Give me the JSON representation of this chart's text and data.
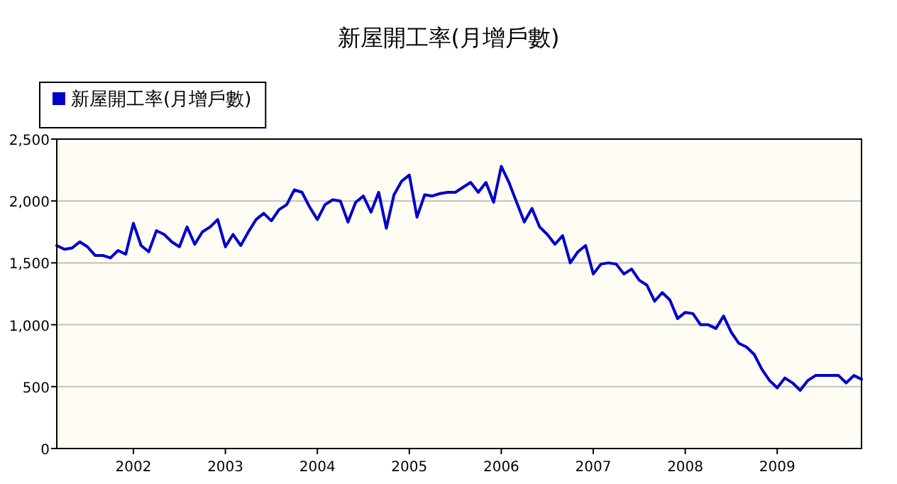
{
  "chart_data": {
    "type": "line",
    "title": "新屋開工率(月增戶數)",
    "x": [
      "2001-03",
      "2001-04",
      "2001-05",
      "2001-06",
      "2001-07",
      "2001-08",
      "2001-09",
      "2001-10",
      "2001-11",
      "2001-12",
      "2002-01",
      "2002-02",
      "2002-03",
      "2002-04",
      "2002-05",
      "2002-06",
      "2002-07",
      "2002-08",
      "2002-09",
      "2002-10",
      "2002-11",
      "2002-12",
      "2003-01",
      "2003-02",
      "2003-03",
      "2003-04",
      "2003-05",
      "2003-06",
      "2003-07",
      "2003-08",
      "2003-09",
      "2003-10",
      "2003-11",
      "2003-12",
      "2004-01",
      "2004-02",
      "2004-03",
      "2004-04",
      "2004-05",
      "2004-06",
      "2004-07",
      "2004-08",
      "2004-09",
      "2004-10",
      "2004-11",
      "2004-12",
      "2005-01",
      "2005-02",
      "2005-03",
      "2005-04",
      "2005-05",
      "2005-06",
      "2005-07",
      "2005-08",
      "2005-09",
      "2005-10",
      "2005-11",
      "2005-12",
      "2006-01",
      "2006-02",
      "2006-03",
      "2006-04",
      "2006-05",
      "2006-06",
      "2006-07",
      "2006-08",
      "2006-09",
      "2006-10",
      "2006-11",
      "2006-12",
      "2007-01",
      "2007-02",
      "2007-03",
      "2007-04",
      "2007-05",
      "2007-06",
      "2007-07",
      "2007-08",
      "2007-09",
      "2007-10",
      "2007-11",
      "2007-12",
      "2008-01",
      "2008-02",
      "2008-03",
      "2008-04",
      "2008-05",
      "2008-06",
      "2008-07",
      "2008-08",
      "2008-09",
      "2008-10",
      "2008-11",
      "2008-12",
      "2009-01",
      "2009-02",
      "2009-03",
      "2009-04",
      "2009-05",
      "2009-06",
      "2009-07",
      "2009-08",
      "2009-09",
      "2009-10",
      "2009-11",
      "2009-12"
    ],
    "series": [
      {
        "name": "新屋開工率(月增戶數)",
        "color": "#0000cc",
        "values": [
          1640,
          1610,
          1620,
          1670,
          1630,
          1560,
          1560,
          1540,
          1600,
          1570,
          1820,
          1640,
          1590,
          1760,
          1730,
          1670,
          1630,
          1790,
          1650,
          1750,
          1790,
          1850,
          1630,
          1730,
          1640,
          1750,
          1850,
          1900,
          1840,
          1930,
          1970,
          2090,
          2070,
          1950,
          1850,
          1970,
          2010,
          2000,
          1830,
          1990,
          2040,
          1910,
          2070,
          1780,
          2050,
          2160,
          2210,
          1870,
          2050,
          2040,
          2060,
          2070,
          2070,
          2110,
          2150,
          2070,
          2150,
          1990,
          2280,
          2150,
          1990,
          1830,
          1940,
          1790,
          1730,
          1650,
          1720,
          1500,
          1590,
          1640,
          1410,
          1490,
          1500,
          1490,
          1410,
          1450,
          1360,
          1320,
          1190,
          1260,
          1200,
          1050,
          1100,
          1090,
          1000,
          1000,
          970,
          1070,
          940,
          850,
          820,
          760,
          640,
          550,
          490,
          570,
          530,
          470,
          550,
          590,
          590,
          590,
          590,
          530,
          590,
          560
        ]
      }
    ],
    "xlim": [
      "2001-03",
      "2009-12"
    ],
    "xticks": [
      "2002",
      "2003",
      "2004",
      "2005",
      "2006",
      "2007",
      "2008",
      "2009"
    ],
    "ylim": [
      0,
      2500
    ],
    "yticks": [
      0,
      {
        "value": 500,
        "label": "500"
      },
      {
        "value": 1000,
        "label": "1,000"
      },
      {
        "value": 1500,
        "label": "1,500"
      },
      {
        "value": 2000,
        "label": "2,000"
      },
      {
        "value": 2500,
        "label": "2,500"
      }
    ],
    "grid": "y",
    "legend": "top left"
  }
}
